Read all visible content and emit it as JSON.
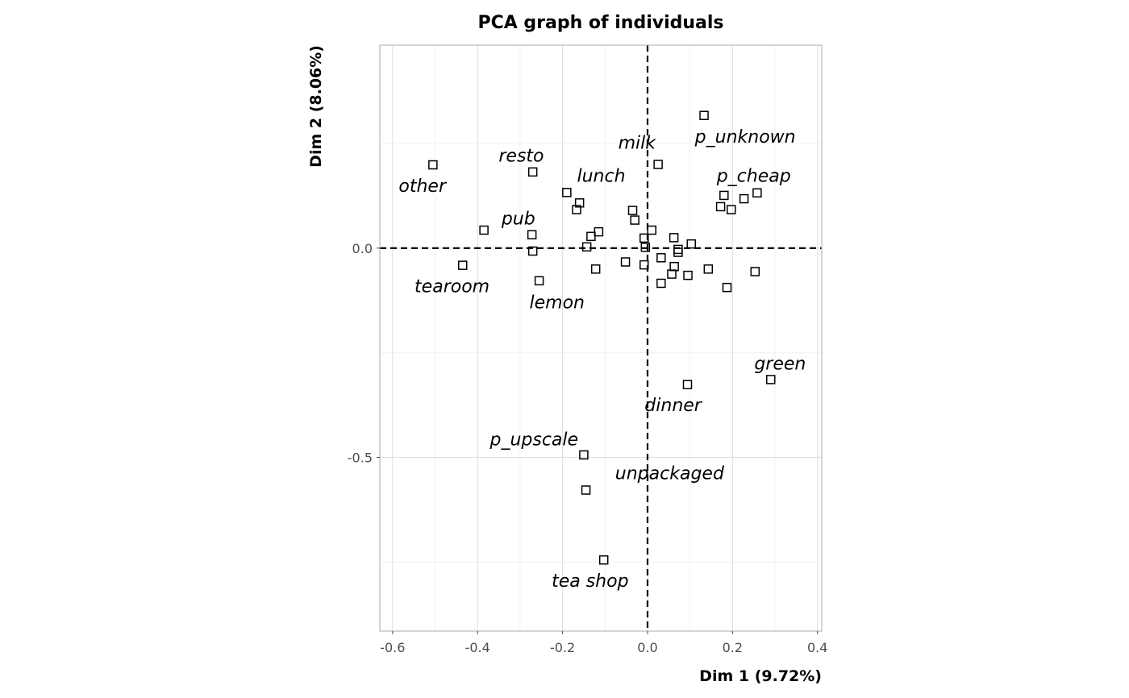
{
  "chart_data": {
    "type": "scatter",
    "title": "PCA graph of individuals",
    "xlabel": "Dim 1 (9.72%)",
    "ylabel": "Dim 2 (8.06%)",
    "xlim": [
      -0.63,
      0.41
    ],
    "ylim": [
      -0.915,
      0.485
    ],
    "x_ticks": [
      {
        "value": -0.6,
        "label": "-0.6"
      },
      {
        "value": -0.4,
        "label": "-0.4"
      },
      {
        "value": -0.2,
        "label": "-0.2"
      },
      {
        "value": 0.0,
        "label": "0.0"
      },
      {
        "value": 0.2,
        "label": "0.2"
      },
      {
        "value": 0.4,
        "label": "0.4"
      }
    ],
    "y_ticks": [
      {
        "value": 0.0,
        "label": "0.0"
      },
      {
        "value": -0.5,
        "label": "-0.5"
      }
    ],
    "grid": true,
    "marker": "open-square",
    "colors": {
      "background": "#ffffff",
      "panel_border": "#b3b3b3",
      "grid_major": "#e0e0e0",
      "grid_minor": "#efefef",
      "reference_line": "#000000",
      "marker": "#000000",
      "tick_text": "#4d4d4d"
    },
    "points": [
      {
        "x": -0.505,
        "y": 0.199
      },
      {
        "x": -0.27,
        "y": 0.182
      },
      {
        "x": 0.133,
        "y": 0.317
      },
      {
        "x": 0.025,
        "y": 0.2
      },
      {
        "x": -0.19,
        "y": 0.133
      },
      {
        "x": -0.16,
        "y": 0.108
      },
      {
        "x": -0.167,
        "y": 0.092
      },
      {
        "x": 0.18,
        "y": 0.126
      },
      {
        "x": 0.172,
        "y": 0.099
      },
      {
        "x": 0.197,
        "y": 0.092
      },
      {
        "x": 0.227,
        "y": 0.118
      },
      {
        "x": 0.258,
        "y": 0.132
      },
      {
        "x": -0.035,
        "y": 0.09
      },
      {
        "x": -0.03,
        "y": 0.067
      },
      {
        "x": -0.385,
        "y": 0.043
      },
      {
        "x": -0.272,
        "y": 0.032
      },
      {
        "x": -0.27,
        "y": -0.007
      },
      {
        "x": 0.01,
        "y": 0.043
      },
      {
        "x": -0.115,
        "y": 0.039
      },
      {
        "x": -0.133,
        "y": 0.028
      },
      {
        "x": -0.143,
        "y": 0.003
      },
      {
        "x": -0.008,
        "y": 0.024
      },
      {
        "x": -0.005,
        "y": 0.002
      },
      {
        "x": 0.062,
        "y": 0.025
      },
      {
        "x": 0.072,
        "y": -0.003
      },
      {
        "x": 0.072,
        "y": -0.01
      },
      {
        "x": 0.103,
        "y": 0.01
      },
      {
        "x": -0.435,
        "y": -0.041
      },
      {
        "x": -0.122,
        "y": -0.05
      },
      {
        "x": -0.052,
        "y": -0.033
      },
      {
        "x": -0.008,
        "y": -0.04
      },
      {
        "x": 0.032,
        "y": -0.023
      },
      {
        "x": 0.063,
        "y": -0.044
      },
      {
        "x": 0.057,
        "y": -0.062
      },
      {
        "x": 0.032,
        "y": -0.084
      },
      {
        "x": 0.095,
        "y": -0.065
      },
      {
        "x": 0.143,
        "y": -0.05
      },
      {
        "x": 0.253,
        "y": -0.056
      },
      {
        "x": -0.255,
        "y": -0.078
      },
      {
        "x": 0.187,
        "y": -0.094
      },
      {
        "x": 0.094,
        "y": -0.326
      },
      {
        "x": 0.29,
        "y": -0.314
      },
      {
        "x": -0.15,
        "y": -0.494
      },
      {
        "x": -0.145,
        "y": -0.578
      },
      {
        "x": -0.103,
        "y": -0.745
      }
    ],
    "labels": [
      {
        "text": "other",
        "x": -0.53,
        "y": 0.15
      },
      {
        "text": "resto",
        "x": -0.297,
        "y": 0.222
      },
      {
        "text": "milk",
        "x": -0.025,
        "y": 0.253
      },
      {
        "text": "p_unknown",
        "x": 0.23,
        "y": 0.267
      },
      {
        "text": "lunch",
        "x": -0.109,
        "y": 0.174
      },
      {
        "text": "p_cheap",
        "x": 0.25,
        "y": 0.174
      },
      {
        "text": "pub",
        "x": -0.304,
        "y": 0.072
      },
      {
        "text": "tearoom",
        "x": -0.46,
        "y": -0.09
      },
      {
        "text": "lemon",
        "x": -0.213,
        "y": -0.128
      },
      {
        "text": "green",
        "x": 0.312,
        "y": -0.275
      },
      {
        "text": "dinner",
        "x": 0.06,
        "y": -0.374
      },
      {
        "text": "p_upscale",
        "x": -0.267,
        "y": -0.456
      },
      {
        "text": "unpackaged",
        "x": 0.052,
        "y": -0.537
      },
      {
        "text": "tea shop",
        "x": -0.135,
        "y": -0.794
      }
    ]
  }
}
